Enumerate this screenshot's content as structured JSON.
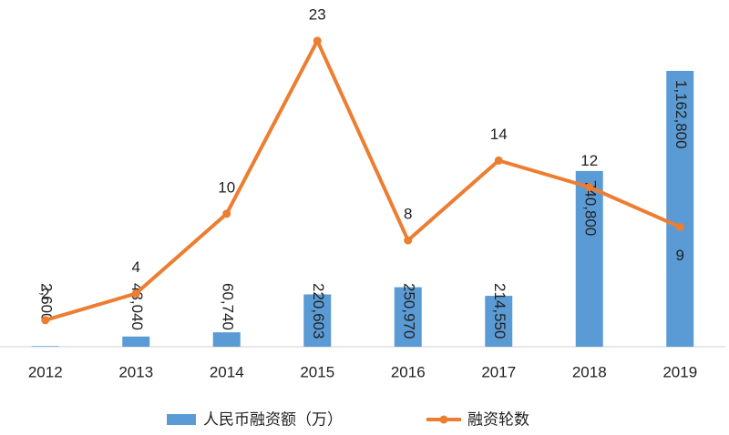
{
  "chart_data": {
    "type": "bar-line",
    "categories": [
      "2012",
      "2013",
      "2014",
      "2015",
      "2016",
      "2017",
      "2018",
      "2019"
    ],
    "series": [
      {
        "name": "人民币融资额（万）",
        "type": "bar",
        "color": "#5b9bd5",
        "values": [
          2600,
          43040,
          60740,
          220603,
          250970,
          214550,
          740800,
          1162800
        ],
        "value_labels": [
          "2,600",
          "43,040",
          "60,740",
          "220,603",
          "250,970",
          "214,550",
          "740,800",
          "1,162,800"
        ]
      },
      {
        "name": "融资轮数",
        "type": "line",
        "color": "#ed7d31",
        "axis": "y2",
        "values": [
          2,
          4,
          10,
          23,
          8,
          14,
          12,
          9
        ]
      }
    ],
    "ylim": [
      0,
      1385000
    ],
    "y2lim": [
      0,
      24.7
    ],
    "legend": "bottom"
  }
}
